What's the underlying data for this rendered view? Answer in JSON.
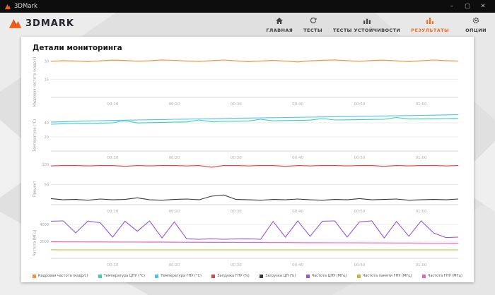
{
  "window": {
    "title": "3DMark",
    "minimize": "–",
    "maximize": "▢",
    "close": "✕"
  },
  "header": {
    "logo_text": "3DMARK",
    "nav": [
      {
        "id": "home",
        "icon": "home",
        "label": "ГЛАВНАЯ",
        "active": false
      },
      {
        "id": "tests",
        "icon": "refresh",
        "label": "ТЕСТЫ",
        "active": false
      },
      {
        "id": "stability",
        "icon": "chart",
        "label": "ТЕСТЫ УСТОЙЧИВОСТИ",
        "active": false
      },
      {
        "id": "results",
        "icon": "bars",
        "label": "РЕЗУЛЬТАТЫ",
        "active": true
      },
      {
        "id": "options",
        "icon": "gear",
        "label": "ОПЦИИ",
        "active": false
      }
    ]
  },
  "page_title": "Детали мониторинга",
  "colors": {
    "accent": "#f06e22",
    "titlebar": "#0d0d0d"
  },
  "chart_data": [
    {
      "type": "line",
      "ylabel": "Кадровая частота (кадр/с)",
      "ylim": [
        0,
        35
      ],
      "yticks": [
        15,
        30
      ],
      "x_range": [
        0,
        66
      ],
      "x_start": 0,
      "x_step": 2,
      "x_ticks": [
        {
          "t": 10,
          "label": "00:10"
        },
        {
          "t": 20,
          "label": "00:20"
        },
        {
          "t": 30,
          "label": "00:30"
        },
        {
          "t": 40,
          "label": "00:40"
        },
        {
          "t": 50,
          "label": "00:50"
        },
        {
          "t": 60,
          "label": "01:00"
        }
      ],
      "series": [
        {
          "name": "Кадровая частота (кадр/с)",
          "color": "#f2913d",
          "values": [
            29.8,
            30.4,
            30.1,
            29.6,
            30.2,
            30.8,
            30.5,
            29.9,
            30.3,
            31.0,
            30.6,
            30.1,
            29.7,
            30.4,
            30.9,
            30.2,
            29.5,
            30.1,
            30.6,
            30.0,
            29.3,
            30.2,
            30.7,
            31.0,
            30.4,
            29.8,
            30.5,
            30.8,
            30.2,
            29.6,
            30.3,
            30.9,
            30.4,
            30.0
          ]
        }
      ]
    },
    {
      "type": "line",
      "ylabel": "Температура (°C)",
      "ylim": [
        0,
        60
      ],
      "yticks": [
        20,
        40
      ],
      "x_range": [
        0,
        66
      ],
      "x_start": 0,
      "x_step": 2,
      "x_ticks": [
        {
          "t": 10,
          "label": "00:10"
        },
        {
          "t": 20,
          "label": "00:20"
        },
        {
          "t": 30,
          "label": "00:30"
        },
        {
          "t": 40,
          "label": "00:40"
        },
        {
          "t": 50,
          "label": "00:50"
        },
        {
          "t": 60,
          "label": "01:00"
        }
      ],
      "series": [
        {
          "name": "Температура ЦПУ (°C)",
          "color": "#3fd0a8",
          "values": [
            38,
            38.5,
            39,
            39.2,
            39.6,
            40,
            43,
            39.8,
            40.2,
            40.6,
            41,
            41.2,
            44,
            41.6,
            42,
            42.2,
            42.6,
            45,
            42.8,
            43.2,
            43.4,
            43.8,
            46,
            44,
            44.2,
            44.4,
            44.8,
            45,
            47.5,
            45.4,
            45.6,
            45.8,
            46,
            46.2
          ]
        },
        {
          "name": "Температура ГПУ (°C)",
          "color": "#45c6f2",
          "values": [
            41,
            41.6,
            42.1,
            42.6,
            43,
            43.3,
            43.7,
            44,
            44.3,
            44.6,
            45,
            45.2,
            45.5,
            45.8,
            46.1,
            46.4,
            46.7,
            47,
            47.2,
            47.5,
            47.8,
            48,
            48.3,
            48.6,
            48.9,
            49.2,
            49.5,
            49.7,
            50,
            50.2,
            50.5,
            50.8,
            51.2,
            51.5
          ]
        }
      ]
    },
    {
      "type": "line",
      "ylabel": "Процент",
      "ylim": [
        0,
        105
      ],
      "yticks": [
        50,
        100
      ],
      "x_range": [
        0,
        66
      ],
      "x_start": 0,
      "x_step": 2,
      "x_ticks": [
        {
          "t": 10,
          "label": "00:10"
        },
        {
          "t": 20,
          "label": "00:20"
        },
        {
          "t": 30,
          "label": "00:30"
        },
        {
          "t": 40,
          "label": "00:40"
        },
        {
          "t": 50,
          "label": "00:50"
        },
        {
          "t": 60,
          "label": "01:00"
        }
      ],
      "series": [
        {
          "name": "Загрузка ГПУ (%)",
          "color": "#e04343",
          "values": [
            96,
            97,
            97,
            96,
            97,
            97,
            95,
            97,
            96,
            97,
            97,
            96,
            97,
            93,
            97,
            97,
            96,
            97,
            97,
            95,
            97,
            96,
            97,
            97,
            96,
            97,
            97,
            95,
            97,
            96,
            97,
            97,
            96,
            97
          ]
        },
        {
          "name": "Загрузка ЦП (%)",
          "color": "#3a3a3a",
          "values": [
            15,
            12,
            13,
            11,
            14,
            12,
            13,
            17,
            12,
            11,
            13,
            14,
            12,
            21,
            24,
            13,
            12,
            11,
            13,
            12,
            14,
            12,
            11,
            13,
            12,
            15,
            12,
            13,
            14,
            11,
            12,
            13,
            12,
            14
          ]
        }
      ]
    },
    {
      "type": "line",
      "ylabel": "Частота (МГц)",
      "ylim": [
        0,
        5000
      ],
      "yticks": [
        2000,
        4000
      ],
      "x_range": [
        0,
        66
      ],
      "x_start": 0,
      "x_step": 2,
      "x_ticks": [
        {
          "t": 10,
          "label": "00:10"
        },
        {
          "t": 20,
          "label": "00:20"
        },
        {
          "t": 30,
          "label": "00:30"
        },
        {
          "t": 40,
          "label": "00:40"
        },
        {
          "t": 50,
          "label": "00:50"
        },
        {
          "t": 60,
          "label": "01:00"
        }
      ],
      "series": [
        {
          "name": "Частота ЦПУ (МГц)",
          "color": "#9a55d8",
          "values": [
            4380,
            4420,
            3000,
            4400,
            4200,
            2500,
            4380,
            3200,
            4420,
            2400,
            4300,
            2300,
            2250,
            2300,
            2250,
            2280,
            2300,
            2250,
            4350,
            2500,
            4420,
            2600,
            4380,
            4420,
            2500,
            4300,
            4420,
            2400,
            4350,
            2600,
            4420,
            3000,
            2450,
            2500
          ]
        },
        {
          "name": "Частота ГПУ (МГц)",
          "color": "#ef5fc0",
          "values": [
            1950,
            1945,
            1940,
            1935,
            1930,
            1925,
            1920,
            1915,
            1910,
            1905,
            1900,
            1895,
            1890,
            1885,
            1880,
            1875,
            1870,
            1865,
            1860,
            1855,
            1850,
            1845,
            1840,
            1835,
            1830,
            1825,
            1820,
            1815,
            1810,
            1805,
            1800,
            1795,
            1790,
            1785
          ]
        },
        {
          "name": "Частота памяти ГПУ (МГц)",
          "color": "#c9b43a",
          "values": [
            1005,
            1000,
            1000,
            1000,
            1000,
            1000,
            1000,
            1000,
            1000,
            1000,
            1000,
            1000,
            1000,
            1000,
            1000,
            1000,
            1000,
            1000,
            1000,
            1000,
            1000,
            1000,
            1000,
            1000,
            1000,
            1000,
            1000,
            1000,
            1000,
            1000,
            1000,
            1000,
            1000,
            1000
          ]
        }
      ]
    }
  ],
  "legend": [
    {
      "label": "Кадровая частота (кадр/с)",
      "color": "#f2913d"
    },
    {
      "label": "Температура ЦПУ (°C)",
      "color": "#3fd0a8"
    },
    {
      "label": "Температура ГПУ (°C)",
      "color": "#45c6f2"
    },
    {
      "label": "Загрузка ГПУ (%)",
      "color": "#e04343"
    },
    {
      "label": "Загрузка ЦП (%)",
      "color": "#3a3a3a"
    },
    {
      "label": "Частота ЦПУ (МГц)",
      "color": "#9a55d8"
    },
    {
      "label": "Частота памяти ГПУ (МГц)",
      "color": "#c9b43a"
    },
    {
      "label": "Частота ГПУ (МГц)",
      "color": "#ef5fc0"
    }
  ]
}
